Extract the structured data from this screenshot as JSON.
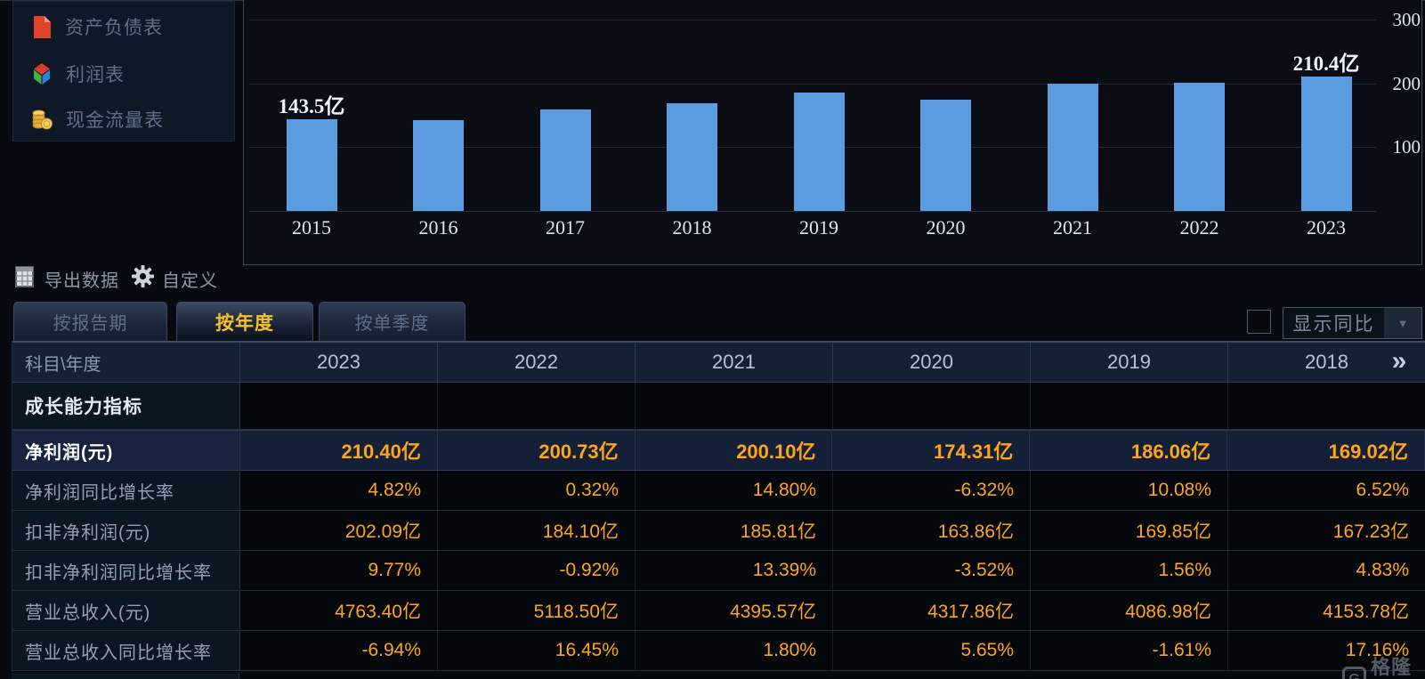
{
  "sidebar": {
    "items": [
      {
        "label": "资产负债表",
        "icon": "document-icon"
      },
      {
        "label": "利润表",
        "icon": "pie-cube-icon"
      },
      {
        "label": "现金流量表",
        "icon": "coins-icon"
      }
    ]
  },
  "toolbar": {
    "export_label": "导出数据",
    "customize_label": "自定义"
  },
  "tabs": {
    "items": [
      {
        "label": "按报告期",
        "active": false
      },
      {
        "label": "按年度",
        "active": true
      },
      {
        "label": "按单季度",
        "active": false
      }
    ]
  },
  "controls": {
    "checkbox_checked": false,
    "show_yoy_label": "显示同比"
  },
  "chart_data": {
    "type": "bar",
    "x": [
      "2015",
      "2016",
      "2017",
      "2018",
      "2019",
      "2020",
      "2021",
      "2022",
      "2023"
    ],
    "values": [
      143.5,
      143.0,
      159.0,
      169.0,
      186.1,
      174.3,
      200.1,
      200.7,
      210.4
    ],
    "point_labels": {
      "2015": "143.5亿",
      "2023": "210.4亿"
    },
    "title": "",
    "xlabel": "",
    "ylabel": "",
    "ylim": [
      0,
      300
    ],
    "yticks": [
      100,
      200,
      300
    ],
    "grid": true,
    "legend": "none",
    "bar_color": "#5B9BDF"
  },
  "table": {
    "corner_label": "科目\\年度",
    "columns": [
      "2023",
      "2022",
      "2021",
      "2020",
      "2019",
      "2018"
    ],
    "rows": [
      {
        "label": "成长能力指标",
        "type": "section",
        "values": [
          "",
          "",
          "",
          "",
          "",
          ""
        ]
      },
      {
        "label": "净利润(元)",
        "type": "highlight",
        "values": [
          "210.40亿",
          "200.73亿",
          "200.10亿",
          "174.31亿",
          "186.06亿",
          "169.02亿"
        ]
      },
      {
        "label": "净利润同比增长率",
        "type": "normal",
        "values": [
          "4.82%",
          "0.32%",
          "14.80%",
          "-6.32%",
          "10.08%",
          "6.52%"
        ]
      },
      {
        "label": "扣非净利润(元)",
        "type": "normal",
        "values": [
          "202.09亿",
          "184.10亿",
          "185.81亿",
          "163.86亿",
          "169.85亿",
          "167.23亿"
        ]
      },
      {
        "label": "扣非净利润同比增长率",
        "type": "normal",
        "values": [
          "9.77%",
          "-0.92%",
          "13.39%",
          "-3.52%",
          "1.56%",
          "4.83%"
        ]
      },
      {
        "label": "营业总收入(元)",
        "type": "normal",
        "values": [
          "4763.40亿",
          "5118.50亿",
          "4395.57亿",
          "4317.86亿",
          "4086.98亿",
          "4153.78亿"
        ]
      },
      {
        "label": "营业总收入同比增长率",
        "type": "normal",
        "values": [
          "-6.94%",
          "16.45%",
          "1.80%",
          "5.65%",
          "-1.61%",
          "17.16%"
        ]
      }
    ]
  },
  "watermark": {
    "brand": "格隆汇"
  },
  "colors": {
    "bar_blue": "#5B9BDF",
    "value_orange": "#FFA51B",
    "active_tab_gold": "#F3C229",
    "highlight_row_bg": "#141F38",
    "panel_border": "#3D4C5E"
  }
}
